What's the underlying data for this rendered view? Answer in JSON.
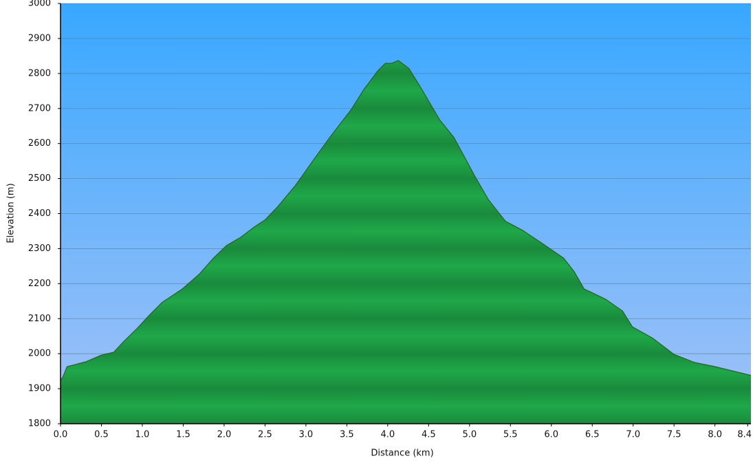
{
  "chart_data": {
    "type": "area",
    "x_label": "Distance   (km)",
    "y_label": "Elevation (m)",
    "x": [
      0,
      0.03,
      0.08,
      0.18,
      0.31,
      0.5,
      0.65,
      0.77,
      0.94,
      1.07,
      1.24,
      1.49,
      1.7,
      1.87,
      2.03,
      2.2,
      2.37,
      2.5,
      2.66,
      2.87,
      3.08,
      3.29,
      3.55,
      3.71,
      3.88,
      3.97,
      4.05,
      4.13,
      4.26,
      4.39,
      4.64,
      4.81,
      5.06,
      5.23,
      5.44,
      5.65,
      5.9,
      6.15,
      6.28,
      6.4,
      6.66,
      6.87,
      6.99,
      7.24,
      7.5,
      7.75,
      8.0,
      8.44
    ],
    "values": [
      1924,
      1934,
      1963,
      1969,
      1977,
      1996,
      2004,
      2034,
      2073,
      2106,
      2146,
      2185,
      2228,
      2273,
      2309,
      2332,
      2362,
      2382,
      2421,
      2480,
      2549,
      2617,
      2696,
      2755,
      2808,
      2829,
      2829,
      2837,
      2814,
      2765,
      2666,
      2617,
      2509,
      2440,
      2378,
      2352,
      2313,
      2273,
      2234,
      2185,
      2156,
      2122,
      2077,
      2044,
      1998,
      1975,
      1963,
      1938
    ],
    "color": "#1fa84a",
    "xlim": [
      0,
      8.44
    ],
    "xticks": [
      {
        "value": 0,
        "label": "0.0"
      },
      0.5,
      {
        "value": 1,
        "label": "1.0"
      },
      1.5,
      {
        "value": 2,
        "label": "2.0"
      },
      2.5,
      {
        "value": 3,
        "label": "3.0"
      },
      3.5,
      {
        "value": 4,
        "label": "4.0"
      },
      4.5,
      {
        "value": 5,
        "label": "5.0"
      },
      5.5,
      {
        "value": 6,
        "label": "6.0"
      },
      6.5,
      {
        "value": 7,
        "label": "7.0"
      },
      7.5,
      {
        "value": 8,
        "label": "8.0"
      },
      8.4
    ],
    "ylim": [
      1800,
      3000
    ],
    "yticks": [
      1800,
      1900,
      2000,
      2100,
      2200,
      2300,
      2400,
      2500,
      2600,
      2700,
      2800,
      2900,
      3000
    ],
    "grid": true
  }
}
